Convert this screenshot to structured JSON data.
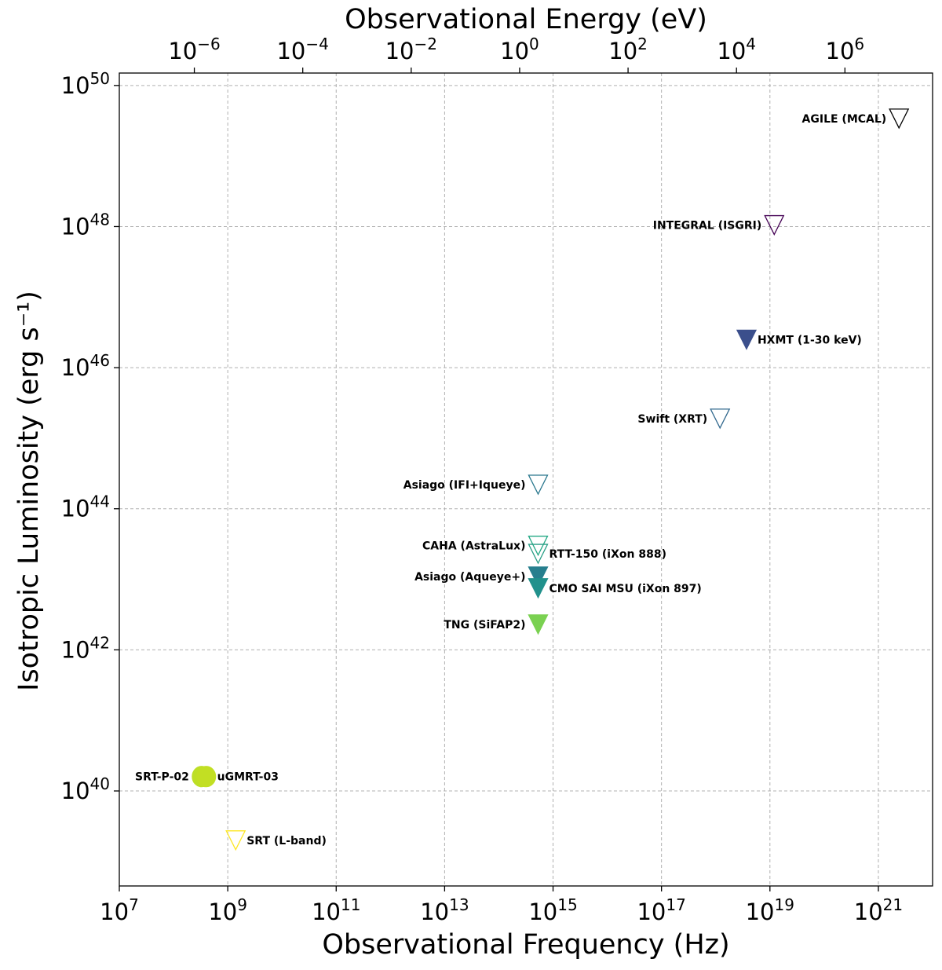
{
  "chart_data": {
    "type": "scatter",
    "title": "",
    "xlabel": "Observational Frequency (Hz)",
    "ylabel": "Isotropic Luminosity (erg s⁻¹)",
    "x2label": "Observational Energy (eV)",
    "x_scale": "log",
    "y_scale": "log",
    "xlim": [
      10000000.0,
      1e+22
    ],
    "ylim": [
      4.5e+38,
      1.5e+50
    ],
    "x2lim": [
      4.1357e-08,
      41357000.0
    ],
    "grid": true,
    "x_ticks": [
      {
        "value": 10000000.0,
        "base": "10",
        "exp": "7"
      },
      {
        "value": 1000000000.0,
        "base": "10",
        "exp": "9"
      },
      {
        "value": 100000000000.0,
        "base": "10",
        "exp": "11"
      },
      {
        "value": 10000000000000.0,
        "base": "10",
        "exp": "13"
      },
      {
        "value": 1000000000000000.0,
        "base": "10",
        "exp": "15"
      },
      {
        "value": 1e+17,
        "base": "10",
        "exp": "17"
      },
      {
        "value": 1e+19,
        "base": "10",
        "exp": "19"
      },
      {
        "value": 1e+21,
        "base": "10",
        "exp": "21"
      }
    ],
    "y_ticks": [
      {
        "value": 1e+40,
        "base": "10",
        "exp": "40"
      },
      {
        "value": 1e+42,
        "base": "10",
        "exp": "42"
      },
      {
        "value": 1e+44,
        "base": "10",
        "exp": "44"
      },
      {
        "value": 1e+46,
        "base": "10",
        "exp": "46"
      },
      {
        "value": 1e+48,
        "base": "10",
        "exp": "48"
      },
      {
        "value": 1e+50,
        "base": "10",
        "exp": "50"
      }
    ],
    "x2_ticks": [
      {
        "value": 1e-06,
        "base": "10",
        "exp": "−6"
      },
      {
        "value": 0.0001,
        "base": "10",
        "exp": "−4"
      },
      {
        "value": 0.01,
        "base": "10",
        "exp": "−2"
      },
      {
        "value": 1,
        "base": "10",
        "exp": "0"
      },
      {
        "value": 100.0,
        "base": "10",
        "exp": "2"
      },
      {
        "value": 10000.0,
        "base": "10",
        "exp": "4"
      },
      {
        "value": 1000000.0,
        "base": "10",
        "exp": "6"
      }
    ],
    "points": [
      {
        "label": "AGILE (MCAL)",
        "x": 2.4e+21,
        "y": 3.4e+49,
        "marker": "triangle-down",
        "filled": false,
        "color": "#000000",
        "label_side": "left"
      },
      {
        "label": "INTEGRAL (ISGRI)",
        "x": 1.2e+19,
        "y": 1.05e+48,
        "marker": "triangle-down",
        "filled": false,
        "color": "#440154",
        "label_side": "left"
      },
      {
        "label": "HXMT (1-30 keV)",
        "x": 3.7e+18,
        "y": 2.5e+46,
        "marker": "triangle-down",
        "filled": true,
        "color": "#3b4f8c",
        "label_side": "right"
      },
      {
        "label": "Swift (XRT)",
        "x": 1.2e+18,
        "y": 1.9e+45,
        "marker": "triangle-down",
        "filled": false,
        "color": "#31688e",
        "label_side": "left"
      },
      {
        "label": "Asiago (IFI+Iqueye)",
        "x": 530000000000000.0,
        "y": 2.2e+44,
        "marker": "triangle-down",
        "filled": false,
        "color": "#2a788e",
        "label_side": "left"
      },
      {
        "label": "CAHA (AstraLux)",
        "x": 530000000000000.0,
        "y": 3e+43,
        "marker": "triangle-down",
        "filled": false,
        "color": "#22a884",
        "label_side": "left"
      },
      {
        "label": "RTT-150 (iXon 888)",
        "x": 530000000000000.0,
        "y": 2.3e+43,
        "marker": "triangle-down",
        "filled": false,
        "color": "#2a9e86",
        "label_side": "right"
      },
      {
        "label": "Asiago (Aqueye+)",
        "x": 530000000000000.0,
        "y": 1.1e+43,
        "marker": "triangle-down",
        "filled": true,
        "color": "#277f8e",
        "label_side": "left"
      },
      {
        "label": "CMO SAI MSU (iXon 897)",
        "x": 530000000000000.0,
        "y": 7.5e+42,
        "marker": "triangle-down",
        "filled": true,
        "color": "#21918c",
        "label_side": "right"
      },
      {
        "label": "TNG (SiFAP2)",
        "x": 530000000000000.0,
        "y": 2.3e+42,
        "marker": "triangle-down",
        "filled": true,
        "color": "#7ad151",
        "label_side": "left"
      },
      {
        "label": "SRT-P-02",
        "x": 330000000.0,
        "y": 1.6e+40,
        "marker": "circle",
        "filled": true,
        "color": "#bddf26",
        "label_side": "left"
      },
      {
        "label": "uGMRT-03",
        "x": 400000000.0,
        "y": 1.6e+40,
        "marker": "circle",
        "filled": true,
        "color": "#c2df23",
        "label_side": "right"
      },
      {
        "label": "SRT (L-band)",
        "x": 1400000000.0,
        "y": 2e+39,
        "marker": "triangle-down",
        "filled": false,
        "color": "#fde725",
        "label_side": "right"
      }
    ]
  }
}
